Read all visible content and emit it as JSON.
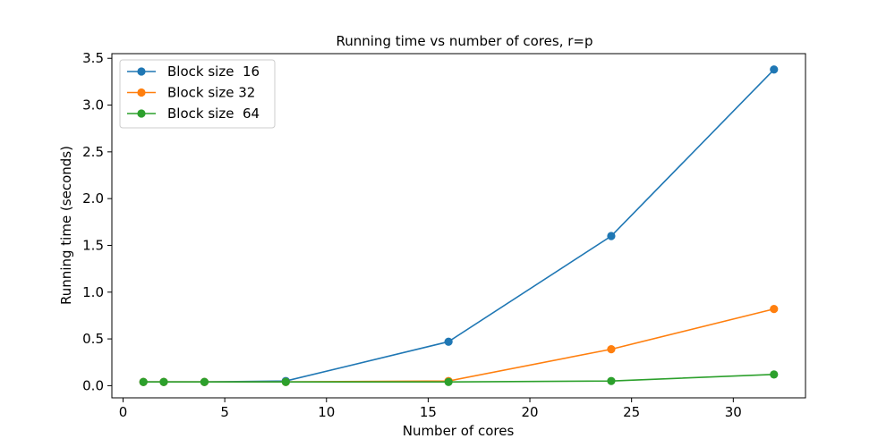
{
  "chart_data": {
    "type": "line",
    "title": "Running time vs number of cores, r=p",
    "xlabel": "Number of cores",
    "ylabel": "Running time (seconds)",
    "xlim": [
      -0.55,
      33.55
    ],
    "ylim": [
      -0.13,
      3.55
    ],
    "xticks": [
      0,
      5,
      10,
      15,
      20,
      25,
      30
    ],
    "yticks": [
      0.0,
      0.5,
      1.0,
      1.5,
      2.0,
      2.5,
      3.0,
      3.5
    ],
    "xtick_labels": [
      "0",
      "5",
      "10",
      "15",
      "20",
      "25",
      "30"
    ],
    "ytick_labels": [
      "0.0",
      "0.5",
      "1.0",
      "1.5",
      "2.0",
      "2.5",
      "3.0",
      "3.5"
    ],
    "grid": false,
    "legend_position": "upper-left",
    "x": [
      1,
      2,
      4,
      8,
      16,
      24,
      32
    ],
    "series": [
      {
        "name": "Block size  16",
        "color": "#1f77b4",
        "values": [
          0.04,
          0.04,
          0.04,
          0.05,
          0.47,
          1.6,
          3.38
        ]
      },
      {
        "name": "Block size 32",
        "color": "#ff7f0e",
        "values": [
          0.04,
          0.04,
          0.04,
          0.04,
          0.05,
          0.39,
          0.82
        ]
      },
      {
        "name": "Block size  64",
        "color": "#2ca02c",
        "values": [
          0.04,
          0.04,
          0.04,
          0.04,
          0.04,
          0.05,
          0.12
        ]
      }
    ]
  }
}
